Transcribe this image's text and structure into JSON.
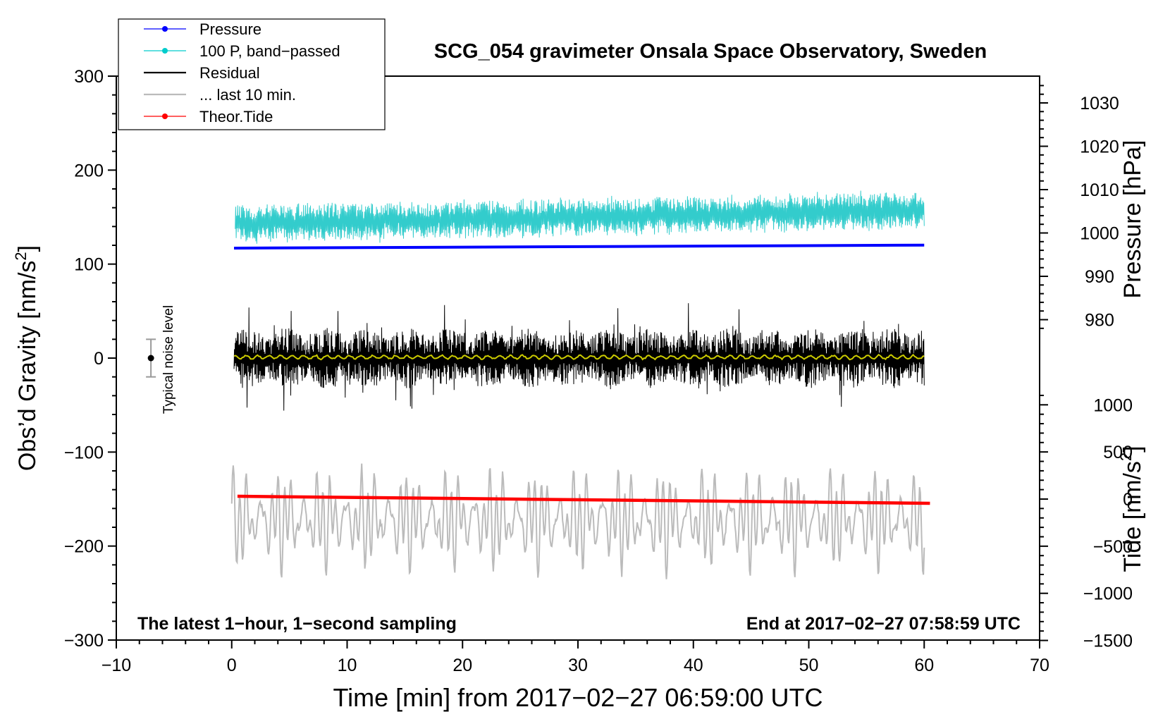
{
  "chart_data": {
    "type": "line",
    "title": "SCG_054 gravimeter Onsala Space Observatory, Sweden",
    "xlabel": "Time [min] from 2017−02−27 06:59:00 UTC",
    "xlim": [
      -10,
      70
    ],
    "x_ticks": [
      -10,
      0,
      10,
      20,
      30,
      40,
      50,
      60,
      70
    ],
    "x_tick_labels": [
      "−10",
      "0",
      "10",
      "20",
      "30",
      "40",
      "50",
      "60",
      "70"
    ],
    "left_axis": {
      "label_main": "Obs’d Gravity [nm/s",
      "label_sup": "2",
      "label_close": "]",
      "lim": [
        -300,
        300
      ],
      "ticks": [
        300,
        200,
        100,
        0,
        -100,
        -200,
        -300
      ],
      "tick_labels": [
        "300",
        "200",
        "100",
        "0",
        "−100",
        "−200",
        "−300"
      ]
    },
    "pressure_axis": {
      "label": "Pressure [hPa]",
      "ticks": [
        1030,
        1020,
        1010,
        1000,
        990,
        980
      ],
      "tick_labels": [
        "1030",
        "1020",
        "1010",
        "1000",
        "990",
        "980"
      ]
    },
    "tide_axis": {
      "label_main": "Tide [nm/s",
      "label_sup": "2",
      "label_close": "]",
      "ticks": [
        1000,
        500,
        0,
        -500,
        -1000,
        -1500
      ],
      "tick_labels": [
        "1000",
        "500",
        "0",
        "−500",
        "−1000",
        "−1500"
      ]
    },
    "legend": {
      "position": "top-left",
      "entries": [
        {
          "label": "Pressure",
          "color": "#0000ff",
          "marker": true
        },
        {
          "label": "100 P, band−passed",
          "color": "#00cccc",
          "marker": true
        },
        {
          "label": "Residual",
          "color": "#000000",
          "marker": false
        },
        {
          "label": "... last 10 min.",
          "color": "#bbbbbb",
          "marker": false
        },
        {
          "label": "Theor.Tide",
          "color": "#ff0000",
          "marker": true
        }
      ]
    },
    "series": [
      {
        "name": "Pressure",
        "color": "#0000ff",
        "axis": "pressure_hpa",
        "x_range": [
          0,
          60
        ],
        "start": 996.5,
        "end": 997.2
      },
      {
        "name": "100 P, band−passed",
        "color": "#33cccc",
        "axis": "left",
        "x_range": [
          0,
          60
        ],
        "center": 148,
        "amplitude": 25
      },
      {
        "name": "Residual",
        "color": "#000000",
        "axis": "left",
        "x_range": [
          0,
          60
        ],
        "center": 0,
        "amplitude": 60
      },
      {
        "name": "smoothed residual",
        "color": "#cccc00",
        "axis": "left",
        "x_range": [
          0,
          60
        ],
        "center": 1,
        "amplitude": 3
      },
      {
        "name": "... last 10 min.",
        "color": "#bbbbbb",
        "axis": "left",
        "x_range": [
          0,
          60
        ],
        "center": -172,
        "amplitude": 45
      },
      {
        "name": "Theor.Tide",
        "color": "#ff0000",
        "axis": "tide_nms2",
        "x_range": [
          0.5,
          60.5
        ],
        "start": 30,
        "end": -45
      }
    ],
    "noise_indicator": {
      "label": "Typical noise level",
      "x": -7,
      "center": 0,
      "half_range": 20
    },
    "annotations": {
      "bottom_left": "The latest 1−hour, 1−second sampling",
      "bottom_right": "End at 2017−02−27 07:58:59 UTC"
    }
  },
  "colors": {
    "pressure": "#0000ff",
    "band_passed": "#33cccc",
    "residual": "#000000",
    "smoothed": "#cccc00",
    "last10": "#bbbbbb",
    "tide": "#ff0000"
  }
}
